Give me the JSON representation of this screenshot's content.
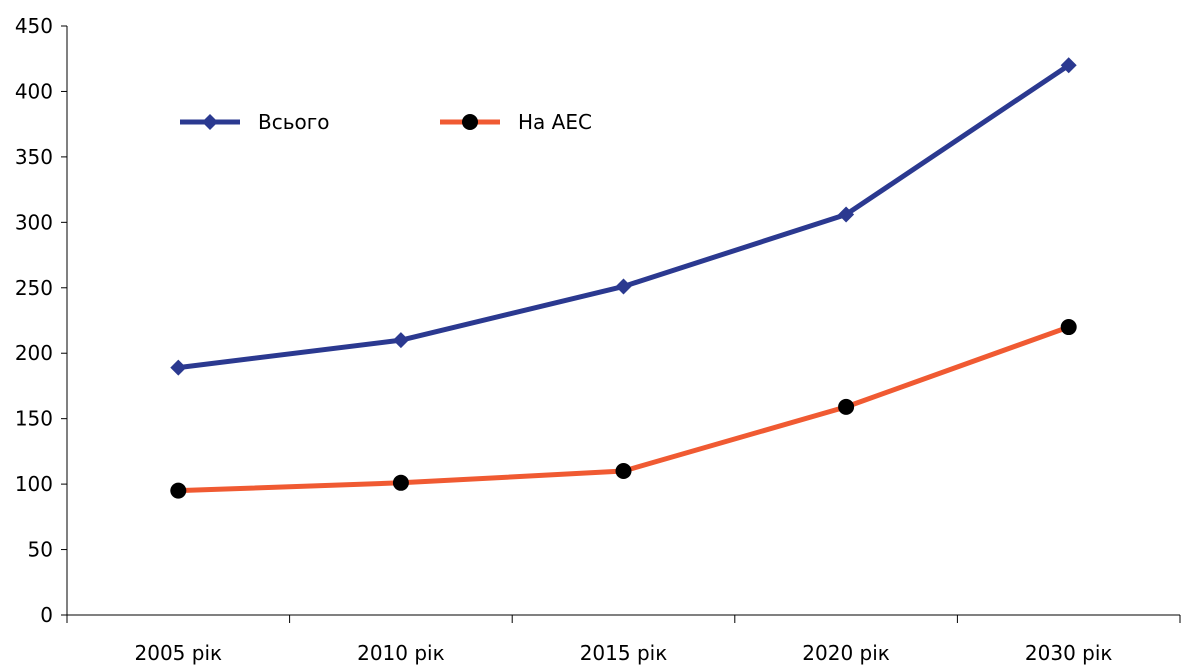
{
  "chart_data": {
    "type": "line",
    "categories": [
      "2005 рік",
      "2010 рік",
      "2015 рік",
      "2020 рік",
      "2030 рік"
    ],
    "ylim": [
      0,
      450
    ],
    "yticks": [
      0,
      50,
      100,
      150,
      200,
      250,
      300,
      350,
      400,
      450
    ],
    "grid": false,
    "legend_position": "top-left",
    "series": [
      {
        "name": "Всього",
        "values": [
          189,
          210,
          251,
          306,
          420
        ],
        "color": "#2b3990",
        "marker": "diamond"
      },
      {
        "name": "На АЕС",
        "values": [
          95,
          101,
          110,
          159,
          220
        ],
        "color": "#f05a32",
        "marker": "circle"
      }
    ]
  }
}
